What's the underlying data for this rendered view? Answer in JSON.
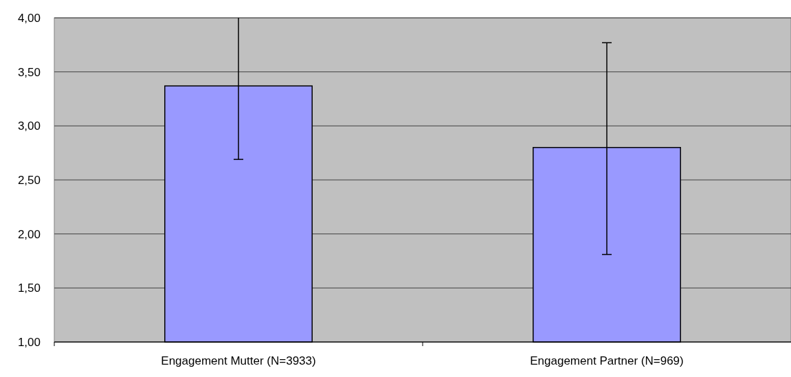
{
  "chart_data": {
    "type": "bar",
    "categories": [
      "Engagement Mutter (N=3933)",
      "Engagement Partner (N=969)"
    ],
    "values": [
      3.37,
      2.8
    ],
    "errors": [
      [
        2.69,
        4.0
      ],
      [
        1.81,
        3.77
      ]
    ],
    "color": "#9999ff",
    "ylim": [
      1,
      4
    ],
    "yticks": [
      {
        "value": 1,
        "label": "1,00"
      },
      {
        "value": 1.5,
        "label": "1,50"
      },
      {
        "value": 2,
        "label": "2,00"
      },
      {
        "value": 2.5,
        "label": "2,50"
      },
      {
        "value": 3,
        "label": "3,00"
      },
      {
        "value": 3.5,
        "label": "3,50"
      },
      {
        "value": 4,
        "label": "4,00"
      }
    ],
    "grid": "y"
  }
}
